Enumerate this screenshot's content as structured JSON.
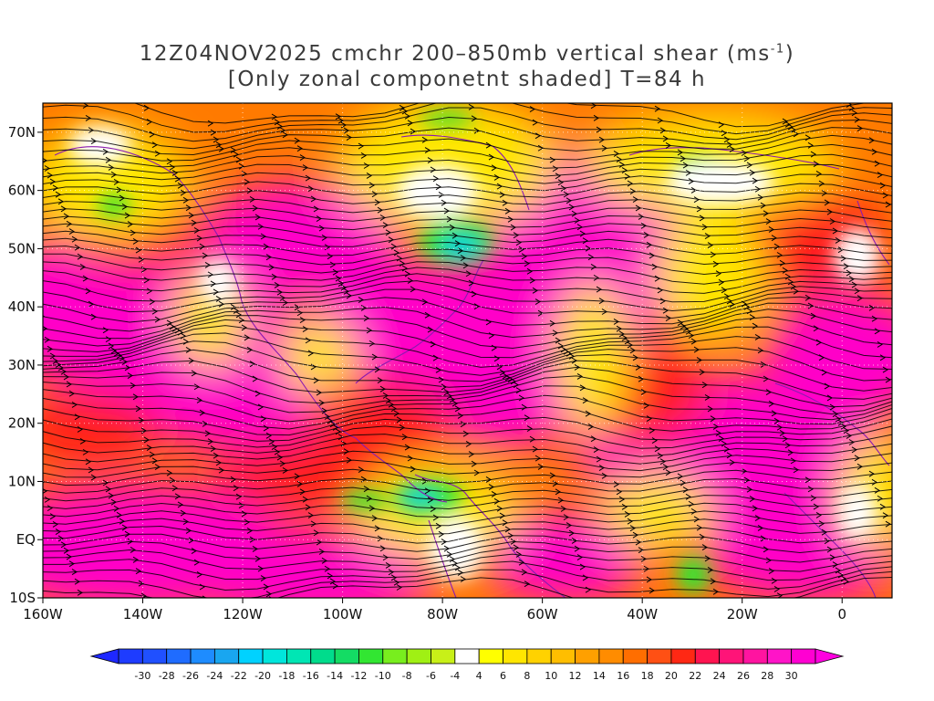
{
  "title": {
    "line1_prefix": "12Z04NOV2025 cmchr 200–850mb vertical shear (ms",
    "line1_sup": "-1",
    "line1_suffix": ")",
    "line2": "[Only zonal componetnt shaded] T=84 h"
  },
  "map": {
    "lon_range": [
      -160,
      10
    ],
    "lat_range": [
      -10,
      75
    ],
    "x_ticks": [
      {
        "lon": -160,
        "label": "160W"
      },
      {
        "lon": -140,
        "label": "140W"
      },
      {
        "lon": -120,
        "label": "120W"
      },
      {
        "lon": -100,
        "label": "100W"
      },
      {
        "lon": -80,
        "label": "80W"
      },
      {
        "lon": -60,
        "label": "60W"
      },
      {
        "lon": -40,
        "label": "40W"
      },
      {
        "lon": -20,
        "label": "20W"
      },
      {
        "lon": 0,
        "label": "0"
      }
    ],
    "y_ticks": [
      {
        "lat": 70,
        "label": "70N"
      },
      {
        "lat": 60,
        "label": "60N"
      },
      {
        "lat": 50,
        "label": "50N"
      },
      {
        "lat": 40,
        "label": "40N"
      },
      {
        "lat": 30,
        "label": "30N"
      },
      {
        "lat": 20,
        "label": "20N"
      },
      {
        "lat": 10,
        "label": "10N"
      },
      {
        "lat": 0,
        "label": "EQ"
      },
      {
        "lat": -10,
        "label": "10S"
      }
    ],
    "grid": "dotted"
  },
  "colorbar": {
    "labels": [
      "-30",
      "-28",
      "-26",
      "-24",
      "-22",
      "-20",
      "-18",
      "-16",
      "-14",
      "-12",
      "-10",
      "-8",
      "-6",
      "-4",
      "4",
      "6",
      "8",
      "10",
      "12",
      "14",
      "16",
      "18",
      "20",
      "22",
      "24",
      "26",
      "28",
      "30"
    ],
    "colors": [
      "#1e3cff",
      "#2050ff",
      "#1f6cff",
      "#1e8cff",
      "#19a6f0",
      "#00d2ff",
      "#00e6dc",
      "#00e6b4",
      "#00dc8c",
      "#14dc64",
      "#32e632",
      "#78ee1e",
      "#a0f014",
      "#c8f018",
      "#ffffff",
      "#ffff00",
      "#ffe600",
      "#ffd200",
      "#ffbe00",
      "#ffa000",
      "#ff8c00",
      "#ff6e00",
      "#ff5014",
      "#ff2814",
      "#ff1450",
      "#ff1478",
      "#ff14a0",
      "#ff14c8",
      "#ff00d2"
    ]
  },
  "colors": {
    "shade_weak": "#ffe600",
    "shade_moderate": "#ff7800",
    "shade_strong": "#ff1a1a",
    "shade_very_strong": "#ff00c8",
    "shade_negative": "#30e630",
    "shade_negative_strong": "#10d2dc",
    "streamline": "#000000",
    "coastline": "#8a1ab0"
  }
}
